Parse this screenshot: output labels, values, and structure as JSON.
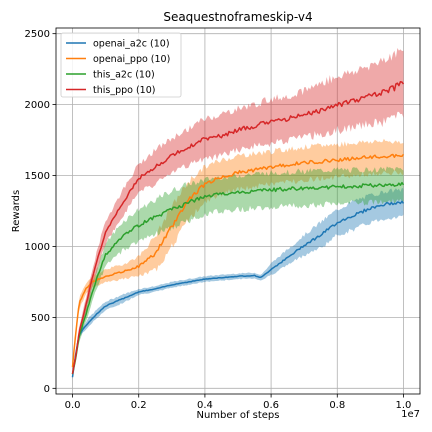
{
  "chart_data": {
    "type": "line",
    "title": "Seaquestnoframeskip-v4",
    "xlabel": "Number of steps",
    "ylabel": "Rewards",
    "x_offset_label": "1e7",
    "xlim": [
      -0.05,
      1.05
    ],
    "ylim": [
      -40,
      2540
    ],
    "x_unit_multiplier": 10000000,
    "xticks": [
      0.0,
      0.2,
      0.4,
      0.6,
      0.8,
      1.0
    ],
    "xtick_labels": [
      "0.0",
      "0.2",
      "0.4",
      "0.6",
      "0.8",
      "1.0"
    ],
    "yticks": [
      0,
      500,
      1000,
      1500,
      2000,
      2500
    ],
    "ytick_labels": [
      "0",
      "500",
      "1000",
      "1500",
      "2000",
      "2500"
    ],
    "grid": true,
    "legend_position": "top-left",
    "series": [
      {
        "name": "openai_a2c (10)",
        "color": "#1f77b4",
        "x": [
          0.0,
          0.01,
          0.02,
          0.05,
          0.08,
          0.1,
          0.15,
          0.2,
          0.25,
          0.3,
          0.35,
          0.4,
          0.45,
          0.5,
          0.55,
          0.57,
          0.6,
          0.65,
          0.7,
          0.75,
          0.8,
          0.85,
          0.9,
          0.95,
          1.0
        ],
        "mean": [
          80,
          250,
          380,
          470,
          540,
          580,
          630,
          680,
          700,
          730,
          750,
          770,
          780,
          790,
          795,
          780,
          840,
          920,
          1010,
          1080,
          1170,
          1220,
          1270,
          1300,
          1310
        ],
        "upper": [
          100,
          270,
          400,
          500,
          570,
          610,
          660,
          700,
          720,
          750,
          770,
          790,
          800,
          810,
          815,
          800,
          880,
          980,
          1080,
          1170,
          1260,
          1320,
          1360,
          1390,
          1400
        ],
        "lower": [
          60,
          230,
          360,
          440,
          510,
          550,
          600,
          660,
          680,
          710,
          730,
          750,
          760,
          770,
          775,
          760,
          800,
          870,
          940,
          990,
          1080,
          1120,
          1170,
          1200,
          1210
        ]
      },
      {
        "name": "openai_ppo (10)",
        "color": "#ff7f0e",
        "x": [
          0.0,
          0.01,
          0.02,
          0.04,
          0.06,
          0.08,
          0.1,
          0.15,
          0.2,
          0.25,
          0.3,
          0.35,
          0.4,
          0.45,
          0.5,
          0.6,
          0.7,
          0.8,
          0.9,
          1.0
        ],
        "mean": [
          150,
          400,
          600,
          700,
          750,
          770,
          790,
          820,
          860,
          950,
          1140,
          1330,
          1440,
          1490,
          1520,
          1560,
          1590,
          1610,
          1630,
          1640
        ],
        "upper": [
          180,
          430,
          640,
          740,
          790,
          810,
          840,
          870,
          930,
          1070,
          1280,
          1460,
          1560,
          1610,
          1640,
          1670,
          1700,
          1720,
          1740,
          1740
        ],
        "lower": [
          120,
          370,
          560,
          660,
          710,
          730,
          750,
          770,
          790,
          830,
          1000,
          1190,
          1310,
          1370,
          1400,
          1440,
          1470,
          1490,
          1510,
          1520
        ]
      },
      {
        "name": "this_a2c (10)",
        "color": "#2ca02c",
        "x": [
          0.0,
          0.01,
          0.02,
          0.04,
          0.06,
          0.08,
          0.1,
          0.15,
          0.2,
          0.25,
          0.3,
          0.35,
          0.4,
          0.45,
          0.5,
          0.6,
          0.7,
          0.8,
          0.9,
          1.0
        ],
        "mean": [
          100,
          220,
          370,
          520,
          680,
          820,
          940,
          1070,
          1150,
          1210,
          1260,
          1310,
          1350,
          1370,
          1380,
          1400,
          1410,
          1420,
          1430,
          1440
        ],
        "upper": [
          130,
          250,
          410,
          570,
          740,
          890,
          1020,
          1170,
          1260,
          1330,
          1390,
          1440,
          1470,
          1490,
          1500,
          1520,
          1530,
          1540,
          1540,
          1550
        ],
        "lower": [
          70,
          190,
          330,
          470,
          620,
          750,
          860,
          970,
          1040,
          1090,
          1130,
          1180,
          1230,
          1250,
          1260,
          1280,
          1290,
          1300,
          1310,
          1320
        ]
      },
      {
        "name": "this_ppo (10)",
        "color": "#d62728",
        "x": [
          0.0,
          0.01,
          0.02,
          0.04,
          0.06,
          0.08,
          0.1,
          0.15,
          0.2,
          0.25,
          0.3,
          0.35,
          0.4,
          0.45,
          0.5,
          0.55,
          0.6,
          0.65,
          0.7,
          0.75,
          0.8,
          0.85,
          0.9,
          0.95,
          1.0
        ],
        "mean": [
          100,
          230,
          400,
          580,
          780,
          950,
          1100,
          1300,
          1480,
          1560,
          1640,
          1700,
          1760,
          1780,
          1820,
          1850,
          1880,
          1900,
          1930,
          1960,
          2000,
          2030,
          2060,
          2090,
          2150
        ],
        "upper": [
          130,
          260,
          440,
          630,
          840,
          1020,
          1180,
          1390,
          1580,
          1680,
          1760,
          1830,
          1900,
          1930,
          1970,
          2000,
          2040,
          2060,
          2100,
          2150,
          2200,
          2230,
          2280,
          2330,
          2380
        ],
        "lower": [
          70,
          200,
          360,
          530,
          720,
          880,
          1020,
          1210,
          1380,
          1440,
          1520,
          1570,
          1620,
          1640,
          1680,
          1710,
          1730,
          1750,
          1770,
          1790,
          1820,
          1840,
          1860,
          1880,
          1940
        ]
      }
    ]
  }
}
